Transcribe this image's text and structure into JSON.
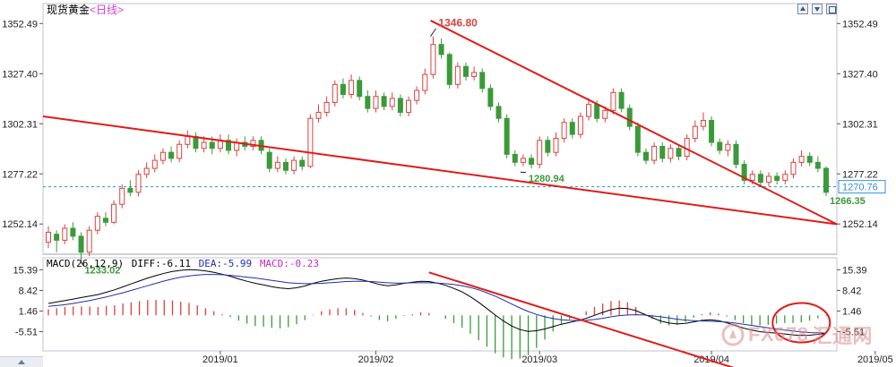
{
  "header": {
    "title": "现货黄金",
    "period": "<日线>"
  },
  "macd_header": {
    "params": "MACD(26,12,9)",
    "diff_label": "DIFF:-6.11",
    "dea_label": "DEA:-5.99",
    "macd_label": "MACD:-0.23"
  },
  "chart_data": [
    {
      "type": "candlestick",
      "title": "现货黄金<日线>",
      "yticks": [
        "1352.49",
        "1327.40",
        "1302.31",
        "1277.22",
        "1252.14"
      ],
      "ylim": [
        1237,
        1358
      ],
      "xticks": [
        "2019/01",
        "2019/02",
        "2019/03",
        "2019/04",
        "2019/05"
      ],
      "current_price": "1270.76",
      "annotations": [
        "1346.80",
        "1280.94",
        "1266.35",
        "1233.02"
      ],
      "colors": {
        "up": "#d9423f",
        "down": "#3a9a3a",
        "trendline": "#e01b1b",
        "price_line": "#2f8fd8"
      },
      "candles": [
        [
          1243,
          1248,
          1251,
          1240
        ],
        [
          1247,
          1244,
          1249,
          1238
        ],
        [
          1244,
          1250,
          1252,
          1242
        ],
        [
          1250,
          1246,
          1253,
          1244
        ],
        [
          1246,
          1238,
          1248,
          1233
        ],
        [
          1238,
          1249,
          1251,
          1236
        ],
        [
          1249,
          1256,
          1258,
          1247
        ],
        [
          1255,
          1253,
          1258,
          1251
        ],
        [
          1253,
          1262,
          1264,
          1252
        ],
        [
          1262,
          1270,
          1272,
          1260
        ],
        [
          1270,
          1268,
          1274,
          1266
        ],
        [
          1268,
          1277,
          1279,
          1266
        ],
        [
          1277,
          1280,
          1283,
          1275
        ],
        [
          1280,
          1284,
          1287,
          1278
        ],
        [
          1284,
          1288,
          1290,
          1282
        ],
        [
          1288,
          1285,
          1291,
          1283
        ],
        [
          1285,
          1292,
          1294,
          1283
        ],
        [
          1292,
          1296,
          1299,
          1290
        ],
        [
          1296,
          1290,
          1298,
          1288
        ],
        [
          1290,
          1293,
          1296,
          1288
        ],
        [
          1293,
          1290,
          1296,
          1287
        ],
        [
          1290,
          1294,
          1297,
          1288
        ],
        [
          1294,
          1289,
          1297,
          1287
        ],
        [
          1289,
          1293,
          1295,
          1286
        ],
        [
          1293,
          1291,
          1296,
          1289
        ],
        [
          1291,
          1294,
          1296,
          1289
        ],
        [
          1294,
          1289,
          1296,
          1287
        ],
        [
          1288,
          1280,
          1290,
          1278
        ],
        [
          1280,
          1283,
          1286,
          1278
        ],
        [
          1283,
          1279,
          1285,
          1277
        ],
        [
          1279,
          1284,
          1286,
          1277
        ],
        [
          1284,
          1281,
          1286,
          1279
        ],
        [
          1281,
          1305,
          1307,
          1280
        ],
        [
          1305,
          1308,
          1312,
          1303
        ],
        [
          1308,
          1313,
          1316,
          1306
        ],
        [
          1313,
          1322,
          1324,
          1311
        ],
        [
          1322,
          1317,
          1325,
          1315
        ],
        [
          1317,
          1324,
          1327,
          1315
        ],
        [
          1324,
          1316,
          1326,
          1314
        ],
        [
          1316,
          1310,
          1319,
          1308
        ],
        [
          1310,
          1316,
          1319,
          1308
        ],
        [
          1316,
          1311,
          1318,
          1309
        ],
        [
          1311,
          1315,
          1318,
          1309
        ],
        [
          1315,
          1308,
          1317,
          1306
        ],
        [
          1308,
          1314,
          1316,
          1306
        ],
        [
          1314,
          1319,
          1321,
          1312
        ],
        [
          1319,
          1327,
          1330,
          1317
        ],
        [
          1327,
          1342,
          1346,
          1325
        ],
        [
          1342,
          1337,
          1345,
          1335
        ],
        [
          1337,
          1322,
          1338,
          1320
        ],
        [
          1322,
          1331,
          1333,
          1320
        ],
        [
          1331,
          1326,
          1333,
          1324
        ],
        [
          1326,
          1328,
          1331,
          1324
        ],
        [
          1328,
          1320,
          1330,
          1318
        ],
        [
          1320,
          1311,
          1322,
          1309
        ],
        [
          1311,
          1305,
          1313,
          1303
        ],
        [
          1305,
          1287,
          1307,
          1285
        ],
        [
          1287,
          1283,
          1289,
          1281
        ],
        [
          1283,
          1285,
          1287,
          1281
        ],
        [
          1285,
          1282,
          1287,
          1280
        ],
        [
          1282,
          1294,
          1296,
          1280
        ],
        [
          1294,
          1288,
          1296,
          1286
        ],
        [
          1288,
          1295,
          1298,
          1286
        ],
        [
          1295,
          1303,
          1305,
          1293
        ],
        [
          1303,
          1297,
          1305,
          1295
        ],
        [
          1297,
          1306,
          1308,
          1295
        ],
        [
          1306,
          1312,
          1315,
          1304
        ],
        [
          1312,
          1305,
          1314,
          1303
        ],
        [
          1305,
          1309,
          1311,
          1303
        ],
        [
          1309,
          1318,
          1320,
          1307
        ],
        [
          1318,
          1310,
          1320,
          1308
        ],
        [
          1310,
          1301,
          1312,
          1299
        ],
        [
          1301,
          1288,
          1303,
          1286
        ],
        [
          1288,
          1284,
          1290,
          1282
        ],
        [
          1284,
          1291,
          1293,
          1282
        ],
        [
          1291,
          1285,
          1293,
          1283
        ],
        [
          1285,
          1290,
          1292,
          1283
        ],
        [
          1290,
          1286,
          1292,
          1284
        ],
        [
          1286,
          1295,
          1297,
          1284
        ],
        [
          1295,
          1301,
          1304,
          1293
        ],
        [
          1301,
          1304,
          1308,
          1299
        ],
        [
          1304,
          1293,
          1306,
          1291
        ],
        [
          1293,
          1289,
          1295,
          1287
        ],
        [
          1289,
          1292,
          1294,
          1286
        ],
        [
          1292,
          1282,
          1294,
          1280
        ],
        [
          1282,
          1274,
          1284,
          1272
        ],
        [
          1274,
          1277,
          1279,
          1272
        ],
        [
          1277,
          1273,
          1279,
          1271
        ],
        [
          1273,
          1276,
          1278,
          1271
        ],
        [
          1276,
          1274,
          1278,
          1272
        ],
        [
          1274,
          1277,
          1279,
          1272
        ],
        [
          1277,
          1283,
          1285,
          1275
        ],
        [
          1283,
          1286,
          1289,
          1281
        ],
        [
          1286,
          1283,
          1288,
          1281
        ],
        [
          1283,
          1280,
          1286,
          1278
        ],
        [
          1280,
          1268,
          1281,
          1266
        ]
      ]
    },
    {
      "type": "macd",
      "title": "MACD(26,12,9)",
      "yticks": [
        "15.39",
        "8.42",
        "1.46",
        "-5.51"
      ],
      "ylim": [
        -12,
        17
      ],
      "colors": {
        "diff": "#000000",
        "dea": "#1f2fa8",
        "hist_pos": "#d9423f",
        "hist_neg": "#3a9a3a",
        "trendline": "#e01b1b",
        "circle": "#e01b1b"
      },
      "diff": [
        4,
        4.5,
        5,
        5.5,
        6,
        6.5,
        7,
        7.8,
        8.6,
        9.6,
        10.6,
        11.6,
        12.6,
        13.4,
        14.2,
        14.8,
        15.2,
        15.4,
        15.3,
        15.0,
        14.5,
        13.9,
        13.2,
        12.3,
        11.5,
        10.8,
        10.3,
        9.7,
        9.2,
        9.0,
        9.3,
        9.9,
        10.8,
        11.5,
        12.0,
        12.4,
        12.6,
        12.4,
        11.9,
        11.2,
        10.4,
        10.0,
        10.3,
        10.8,
        11.2,
        11.5,
        11.4,
        10.9,
        10.1,
        9.1,
        7.9,
        6.3,
        4.4,
        2.3,
        0.1,
        -1.9,
        -3.6,
        -4.8,
        -5.4,
        -5.2,
        -4.6,
        -3.8,
        -3.0,
        -2.4,
        -1.8,
        -1.0,
        0.0,
        1.0,
        1.9,
        2.4,
        2.3,
        1.6,
        0.4,
        -0.8,
        -1.9,
        -2.6,
        -2.9,
        -2.7,
        -2.2,
        -1.7,
        -1.5,
        -1.8,
        -2.5,
        -3.4,
        -4.3,
        -5.0,
        -5.5,
        -5.8,
        -6.0,
        -6.3,
        -6.6,
        -6.8,
        -6.7,
        -6.4,
        -6.11
      ],
      "dea": [
        3,
        3.3,
        3.6,
        4,
        4.5,
        5,
        5.6,
        6.2,
        6.9,
        7.6,
        8.4,
        9.2,
        10,
        10.8,
        11.6,
        12.3,
        12.9,
        13.3,
        13.6,
        13.8,
        13.8,
        13.7,
        13.5,
        13.2,
        12.9,
        12.6,
        12.2,
        11.8,
        11.4,
        11.0,
        10.8,
        10.7,
        10.7,
        10.8,
        11.0,
        11.2,
        11.4,
        11.5,
        11.5,
        11.4,
        11.2,
        11.0,
        10.9,
        10.9,
        11.0,
        11.0,
        11.0,
        10.9,
        10.7,
        10.4,
        10.0,
        9.4,
        8.6,
        7.6,
        6.5,
        5.2,
        3.8,
        2.5,
        1.3,
        0.3,
        -0.5,
        -1.1,
        -1.5,
        -1.7,
        -1.8,
        -1.7,
        -1.4,
        -1.0,
        -0.5,
        -0.1,
        0.1,
        0.2,
        0.1,
        -0.2,
        -0.5,
        -0.9,
        -1.3,
        -1.6,
        -1.8,
        -1.9,
        -2.0,
        -2.1,
        -2.3,
        -2.6,
        -3.0,
        -3.4,
        -3.8,
        -4.2,
        -4.6,
        -5.0,
        -5.3,
        -5.6,
        -5.8,
        -5.9,
        -5.99
      ]
    }
  ],
  "watermark": {
    "brand": "FX678",
    "cn": "汇通网"
  }
}
